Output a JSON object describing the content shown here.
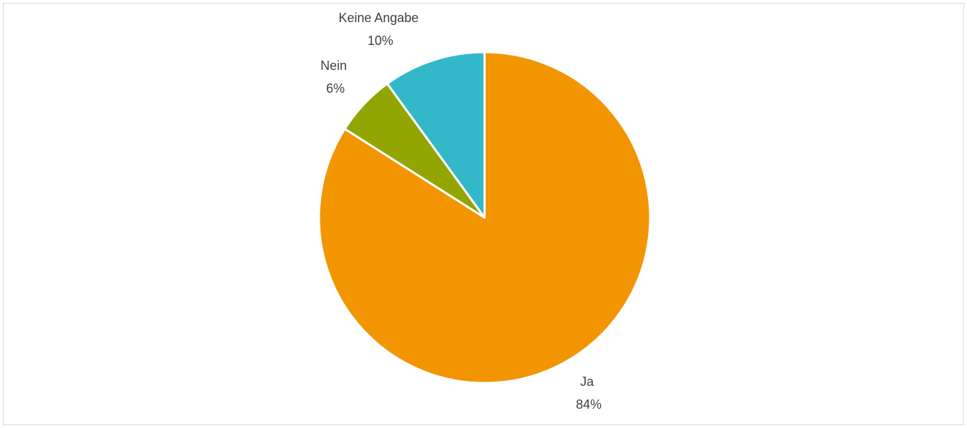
{
  "chart_data": {
    "type": "pie",
    "title": "",
    "start_angle_deg": 0,
    "direction": "clockwise",
    "legend": "none",
    "slices": [
      {
        "label": "Ja",
        "value": 84,
        "display": "84%",
        "color": "#f29500"
      },
      {
        "label": "Nein",
        "value": 6,
        "display": "6%",
        "color": "#92a500"
      },
      {
        "label": "Keine Angabe",
        "value": 10,
        "display": "10%",
        "color": "#33b8c9"
      }
    ]
  }
}
